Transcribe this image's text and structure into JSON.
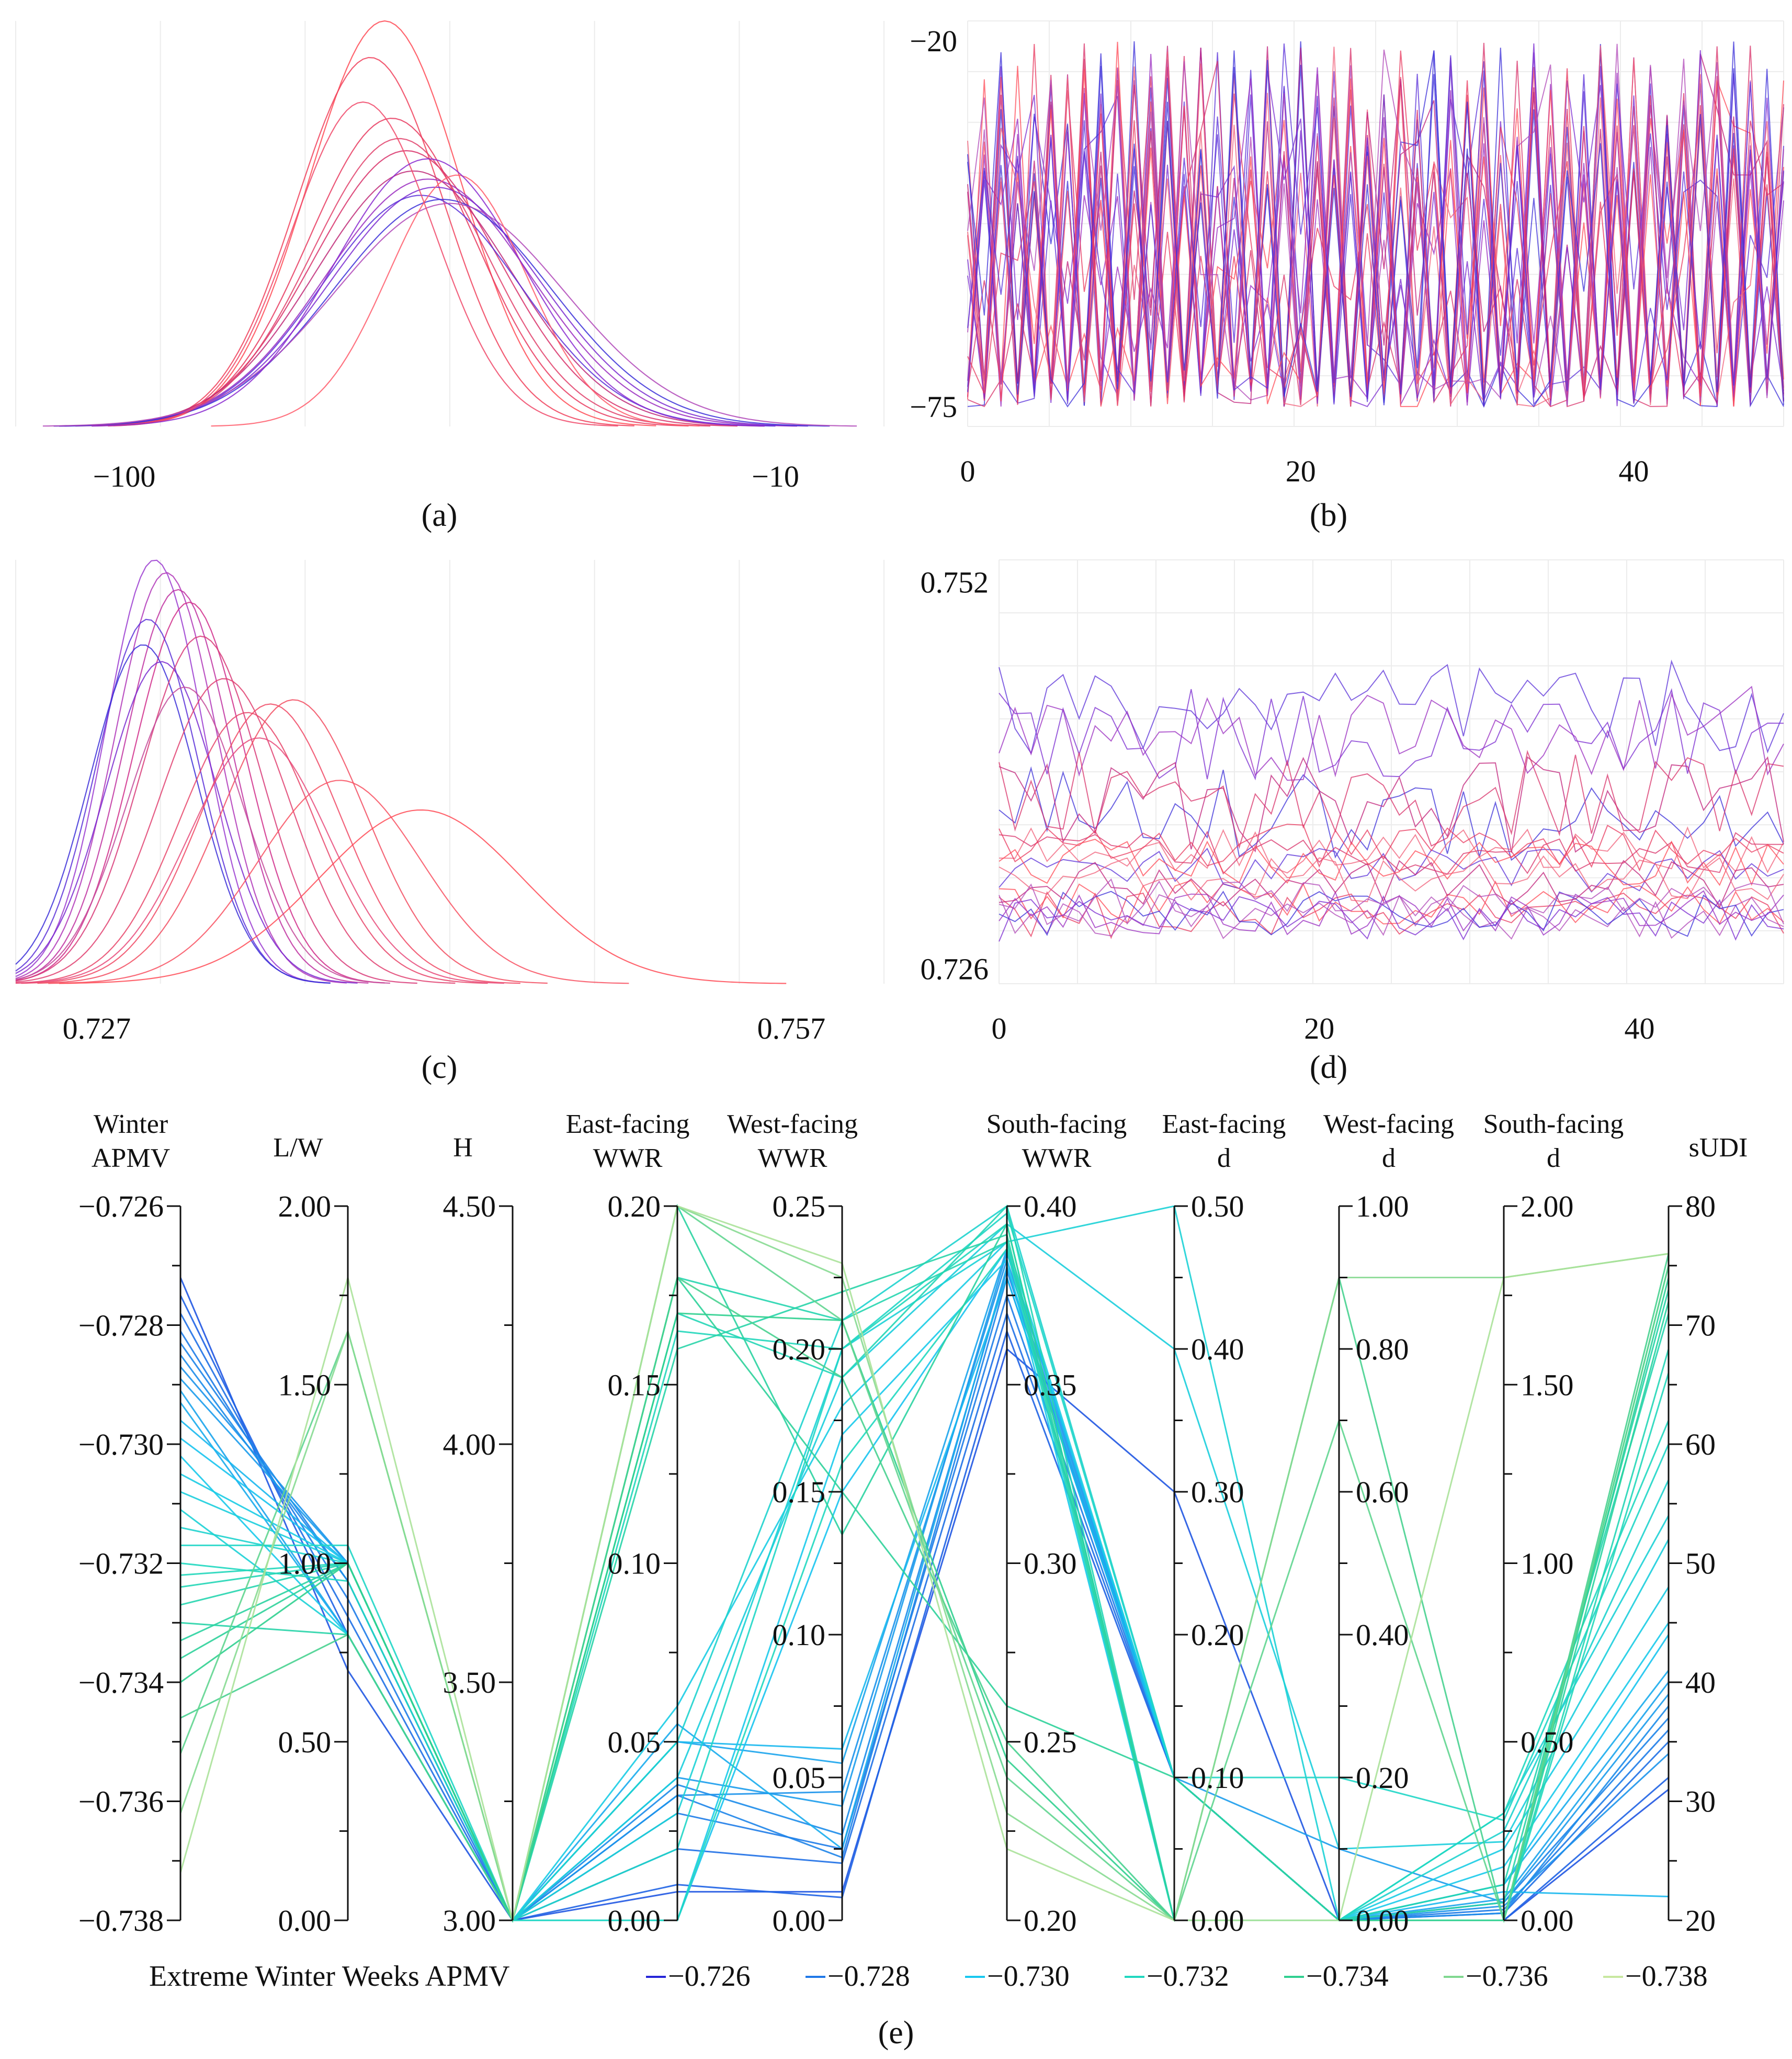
{
  "chart_data": [
    {
      "panel": "(a)",
      "type": "line",
      "description_kind": "distribution",
      "x_ticks": [
        -100,
        -10
      ],
      "xlim": [
        -115,
        5
      ],
      "grid": true,
      "color_scale": [
        "#3b2fd8",
        "#7a2ad0",
        "#c0207a",
        "#ff4a55"
      ],
      "series": [
        {
          "mean": -64,
          "sd": 10.5,
          "peak": 1.0,
          "color": "#ff4a55"
        },
        {
          "mean": -66,
          "sd": 10.2,
          "peak": 0.91,
          "color": "#f0405a"
        },
        {
          "mean": -63,
          "sd": 11.5,
          "peak": 0.76,
          "color": "#e8385e"
        },
        {
          "mean": -61,
          "sd": 12.8,
          "peak": 0.68,
          "color": "#d83068"
        },
        {
          "mean": -60,
          "sd": 13.5,
          "peak": 0.63,
          "color": "#c02a78"
        },
        {
          "mean": -58,
          "sd": 14.2,
          "peak": 0.61,
          "color": "#9a2cc0"
        },
        {
          "mean": -57,
          "sd": 14.5,
          "peak": 0.59,
          "color": "#7a2ad0"
        },
        {
          "mean": -59,
          "sd": 13.8,
          "peak": 0.57,
          "color": "#5a30d8"
        },
        {
          "mean": -56,
          "sd": 15.0,
          "peak": 0.56,
          "color": "#3b2fd8"
        },
        {
          "mean": -62,
          "sd": 12.0,
          "peak": 0.71,
          "color": "#e0406a"
        },
        {
          "mean": -55,
          "sd": 15.8,
          "peak": 0.55,
          "color": "#b048b8"
        },
        {
          "mean": -54,
          "sd": 9.5,
          "peak": 0.62,
          "color": "#ff5a6a"
        },
        {
          "mean": -67,
          "sd": 9.8,
          "peak": 0.8,
          "color": "#f04868"
        },
        {
          "mean": -58,
          "sd": 13.0,
          "peak": 0.66,
          "color": "#8a2ad0"
        }
      ]
    },
    {
      "panel": "(b)",
      "type": "line",
      "description_kind": "trace",
      "x_ticks": [
        0,
        20,
        40
      ],
      "y_ticks": [
        -20,
        -75
      ],
      "xlim": [
        0,
        49
      ],
      "ylim": [
        -78,
        -17
      ],
      "grid": true,
      "color_scale": [
        "#3b2fd8",
        "#7a2ad0",
        "#c0207a",
        "#ff4a55"
      ],
      "n_series": 22,
      "n_points": 50,
      "value_range": [
        -75,
        -20
      ]
    },
    {
      "panel": "(c)",
      "type": "line",
      "description_kind": "distribution",
      "x_ticks": [
        0.727,
        0.757
      ],
      "xlim": [
        0.7235,
        0.761
      ],
      "grid": true,
      "color_scale": [
        "#3b2fd8",
        "#7a2ad0",
        "#c0207a",
        "#ff4a55"
      ],
      "series": [
        {
          "mean": 0.7295,
          "sd": 0.0021,
          "peak": 1.0,
          "color": "#9a3ad0"
        },
        {
          "mean": 0.73,
          "sd": 0.0022,
          "peak": 0.97,
          "color": "#b036b8"
        },
        {
          "mean": 0.7305,
          "sd": 0.0023,
          "peak": 0.93,
          "color": "#c030a0"
        },
        {
          "mean": 0.731,
          "sd": 0.0024,
          "peak": 0.9,
          "color": "#d02c8a"
        },
        {
          "mean": 0.7292,
          "sd": 0.0022,
          "peak": 0.86,
          "color": "#5a30d8"
        },
        {
          "mean": 0.729,
          "sd": 0.0023,
          "peak": 0.8,
          "color": "#3b2fd8"
        },
        {
          "mean": 0.7298,
          "sd": 0.0024,
          "peak": 0.76,
          "color": "#7a2ad0"
        },
        {
          "mean": 0.7315,
          "sd": 0.0026,
          "peak": 0.82,
          "color": "#d83a78"
        },
        {
          "mean": 0.7325,
          "sd": 0.0028,
          "peak": 0.72,
          "color": "#e04070"
        },
        {
          "mean": 0.7335,
          "sd": 0.0029,
          "peak": 0.64,
          "color": "#e84468"
        },
        {
          "mean": 0.7345,
          "sd": 0.003,
          "peak": 0.66,
          "color": "#f04864"
        },
        {
          "mean": 0.7355,
          "sd": 0.0031,
          "peak": 0.67,
          "color": "#f24c60"
        },
        {
          "mean": 0.7375,
          "sd": 0.0035,
          "peak": 0.48,
          "color": "#f85060"
        },
        {
          "mean": 0.741,
          "sd": 0.0044,
          "peak": 0.41,
          "color": "#ff4a55"
        },
        {
          "mean": 0.734,
          "sd": 0.003,
          "peak": 0.58,
          "color": "#e84a7a"
        },
        {
          "mean": 0.7308,
          "sd": 0.0025,
          "peak": 0.7,
          "color": "#c44a9a"
        }
      ]
    },
    {
      "panel": "(d)",
      "type": "line",
      "description_kind": "trace",
      "x_ticks": [
        0,
        20,
        40
      ],
      "y_ticks": [
        0.752,
        0.726
      ],
      "xlim": [
        0,
        49
      ],
      "ylim": [
        0.725,
        0.7535
      ],
      "grid": true,
      "color_scale": [
        "#3b2fd8",
        "#7a2ad0",
        "#c0207a",
        "#ff4a55"
      ],
      "n_series": 20,
      "n_points": 50,
      "value_range": [
        0.726,
        0.752
      ]
    },
    {
      "panel": "(e)",
      "type": "parallel-coordinates",
      "axes": [
        {
          "title": [
            "Winter",
            "APMV"
          ],
          "min": -0.738,
          "max": -0.726,
          "ticks": [
            -0.726,
            -0.728,
            -0.73,
            -0.732,
            -0.734,
            -0.736,
            -0.738
          ],
          "tick_labels": [
            "−0.726",
            "−0.728",
            "−0.730",
            "−0.732",
            "−0.734",
            "−0.736",
            "−0.738"
          ],
          "label_side": "left"
        },
        {
          "title": [
            "L/W"
          ],
          "min": 0.0,
          "max": 2.0,
          "ticks": [
            0,
            0.5,
            1.0,
            1.5,
            2.0
          ],
          "tick_labels": [
            "0.00",
            "0.50",
            "1.00",
            "1.50",
            "2.00"
          ],
          "label_side": "left"
        },
        {
          "title": [
            "H"
          ],
          "min": 3.0,
          "max": 4.5,
          "ticks": [
            3.0,
            3.5,
            4.0,
            4.5
          ],
          "tick_labels": [
            "3.00",
            "3.50",
            "4.00",
            "4.50"
          ],
          "label_side": "left"
        },
        {
          "title": [
            "East-facing",
            "WWR"
          ],
          "min": 0.0,
          "max": 0.2,
          "ticks": [
            0,
            0.05,
            0.1,
            0.15,
            0.2
          ],
          "tick_labels": [
            "0.00",
            "0.05",
            "0.10",
            "0.15",
            "0.20"
          ],
          "label_side": "left"
        },
        {
          "title": [
            "West-facing",
            "WWR"
          ],
          "min": 0.0,
          "max": 0.25,
          "ticks": [
            0,
            0.05,
            0.1,
            0.15,
            0.2,
            0.25
          ],
          "tick_labels": [
            "0.00",
            "0.05",
            "0.10",
            "0.15",
            "0.20",
            "0.25"
          ],
          "label_side": "left"
        },
        {
          "title": [
            "South-facing",
            "WWR"
          ],
          "min": 0.2,
          "max": 0.4,
          "ticks": [
            0.2,
            0.25,
            0.3,
            0.35,
            0.4
          ],
          "tick_labels": [
            "0.20",
            "0.25",
            "0.30",
            "0.35",
            "0.40"
          ],
          "label_side": "right"
        },
        {
          "title": [
            "East-facing",
            "d"
          ],
          "min": 0.0,
          "max": 0.5,
          "ticks": [
            0,
            0.1,
            0.2,
            0.3,
            0.4,
            0.5
          ],
          "tick_labels": [
            "0.00",
            "0.10",
            "0.20",
            "0.30",
            "0.40",
            "0.50"
          ],
          "label_side": "right"
        },
        {
          "title": [
            "West-facing",
            "d"
          ],
          "min": 0.0,
          "max": 1.0,
          "ticks": [
            0,
            0.2,
            0.4,
            0.6,
            0.8,
            1.0
          ],
          "tick_labels": [
            "0.00",
            "0.20",
            "0.40",
            "0.60",
            "0.80",
            "1.00"
          ],
          "label_side": "right"
        },
        {
          "title": [
            "South-facing",
            "d"
          ],
          "min": 0.0,
          "max": 2.0,
          "ticks": [
            0,
            0.5,
            1.0,
            1.5,
            2.0
          ],
          "tick_labels": [
            "0.00",
            "0.50",
            "1.00",
            "1.50",
            "2.00"
          ],
          "label_side": "right"
        },
        {
          "title": [
            "sUDI"
          ],
          "min": 20,
          "max": 80,
          "ticks": [
            20,
            30,
            40,
            50,
            60,
            70,
            80
          ],
          "tick_labels": [
            "20",
            "30",
            "40",
            "50",
            "60",
            "70",
            "80"
          ],
          "label_side": "right"
        }
      ],
      "color_by": "Winter APMV",
      "color_stops": [
        {
          "value": -0.726,
          "color": "#2424d8"
        },
        {
          "value": -0.728,
          "color": "#1e78e8"
        },
        {
          "value": -0.73,
          "color": "#18c8f0"
        },
        {
          "value": -0.732,
          "color": "#20d8c0"
        },
        {
          "value": -0.734,
          "color": "#30d090"
        },
        {
          "value": -0.736,
          "color": "#80d890"
        },
        {
          "value": -0.738,
          "color": "#c8e8a0"
        }
      ],
      "lines": [
        [
          -0.7272,
          0.7,
          3.0,
          0.008,
          0.01,
          0.36,
          0.3,
          0.0,
          0.0,
          31
        ],
        [
          -0.7275,
          0.8,
          3.0,
          0.01,
          0.008,
          0.365,
          0.1,
          0.0,
          0.0,
          32
        ],
        [
          -0.7278,
          0.85,
          3.0,
          0.02,
          0.02,
          0.37,
          0.1,
          0.0,
          0.02,
          35
        ],
        [
          -0.7281,
          0.9,
          3.0,
          0.03,
          0.025,
          0.375,
          0.1,
          0.0,
          0.03,
          36
        ],
        [
          -0.7283,
          0.95,
          3.0,
          0.035,
          0.022,
          0.38,
          0.1,
          0.0,
          0.05,
          37
        ],
        [
          -0.7285,
          0.95,
          3.0,
          0.038,
          0.03,
          0.382,
          0.1,
          0.0,
          0.02,
          38
        ],
        [
          -0.7287,
          1.0,
          3.0,
          0.035,
          0.045,
          0.385,
          0.1,
          0.0,
          0.04,
          34
        ],
        [
          -0.7289,
          1.0,
          3.0,
          0.04,
          0.04,
          0.387,
          0.1,
          0.1,
          0.05,
          39
        ],
        [
          -0.7291,
          0.8,
          3.0,
          0.05,
          0.055,
          0.388,
          0.1,
          0.0,
          0.06,
          40
        ],
        [
          -0.7293,
          0.8,
          3.0,
          0.055,
          0.025,
          0.383,
          0.1,
          0.0,
          0.1,
          41
        ],
        [
          -0.7296,
          1.0,
          3.0,
          0.05,
          0.06,
          0.38,
          0.1,
          0.0,
          0.08,
          22
        ],
        [
          -0.7299,
          1.0,
          3.0,
          0.0,
          0.15,
          0.388,
          0.1,
          0.0,
          0.1,
          44
        ],
        [
          -0.7302,
          0.8,
          3.0,
          0.0,
          0.17,
          0.385,
          0.0,
          0.0,
          0.15,
          45
        ],
        [
          -0.7305,
          1.0,
          3.0,
          0.06,
          0.18,
          0.39,
          0.1,
          0.0,
          0.2,
          48
        ],
        [
          -0.7308,
          1.0,
          3.0,
          0.04,
          0.19,
          0.395,
          0.4,
          0.1,
          0.22,
          52
        ],
        [
          -0.7311,
          0.8,
          3.0,
          0.03,
          0.2,
          0.39,
          0.5,
          0.0,
          0.3,
          54
        ],
        [
          -0.7314,
          1.0,
          3.0,
          0.05,
          0.21,
          0.4,
          0.1,
          0.0,
          0.25,
          57
        ],
        [
          -0.7317,
          1.05,
          3.0,
          0.02,
          0.2,
          0.398,
          0.1,
          0.2,
          0.28,
          60
        ],
        [
          -0.732,
          0.95,
          3.0,
          0.0,
          0.16,
          0.388,
          0.0,
          0.0,
          0.3,
          62
        ],
        [
          -0.7322,
          1.0,
          3.0,
          0.165,
          0.2,
          0.395,
          0.0,
          0.0,
          0.0,
          66
        ],
        [
          -0.7324,
          1.0,
          3.0,
          0.17,
          0.19,
          0.4,
          0.0,
          0.0,
          0.0,
          68
        ],
        [
          -0.7327,
          1.0,
          3.0,
          0.18,
          0.21,
          0.39,
          0.0,
          0.0,
          0.1,
          71
        ],
        [
          -0.733,
          0.8,
          3.0,
          0.16,
          0.22,
          0.392,
          0.0,
          0.0,
          0.05,
          73
        ],
        [
          -0.7333,
          1.0,
          3.0,
          0.2,
          0.135,
          0.395,
          0.0,
          0.0,
          0.0,
          72
        ],
        [
          -0.7336,
          1.0,
          3.0,
          0.18,
          0.15,
          0.26,
          0.1,
          0.0,
          0.0,
          74
        ],
        [
          -0.734,
          1.0,
          3.0,
          0.17,
          0.21,
          0.245,
          0.0,
          0.0,
          0.0,
          75
        ],
        [
          -0.7346,
          0.8,
          3.0,
          0.18,
          0.19,
          0.25,
          0.0,
          0.9,
          0.0,
          76
        ],
        [
          -0.7352,
          1.65,
          3.0,
          0.2,
          0.21,
          0.24,
          0.0,
          0.7,
          0.0,
          75
        ],
        [
          -0.7362,
          1.65,
          3.0,
          0.2,
          0.225,
          0.23,
          0.0,
          0.9,
          1.8,
          76
        ],
        [
          -0.7372,
          1.8,
          3.0,
          0.2,
          0.23,
          0.22,
          0.0,
          0.0,
          1.8,
          76
        ]
      ]
    }
  ],
  "labels": {
    "a": "(a)",
    "b": "(b)",
    "c": "(c)",
    "d": "(d)",
    "e": "(e)"
  },
  "legend": {
    "title": "Extreme Winter Weeks APMV",
    "items": [
      {
        "label": "−0.726",
        "color": "#2424d8"
      },
      {
        "label": "−0.728",
        "color": "#1e78e8"
      },
      {
        "label": "−0.730",
        "color": "#18c8f0"
      },
      {
        "label": "−0.732",
        "color": "#20d8c0"
      },
      {
        "label": "−0.734",
        "color": "#30d090"
      },
      {
        "label": "−0.736",
        "color": "#80d890"
      },
      {
        "label": "−0.738",
        "color": "#c8e8a0"
      }
    ]
  }
}
